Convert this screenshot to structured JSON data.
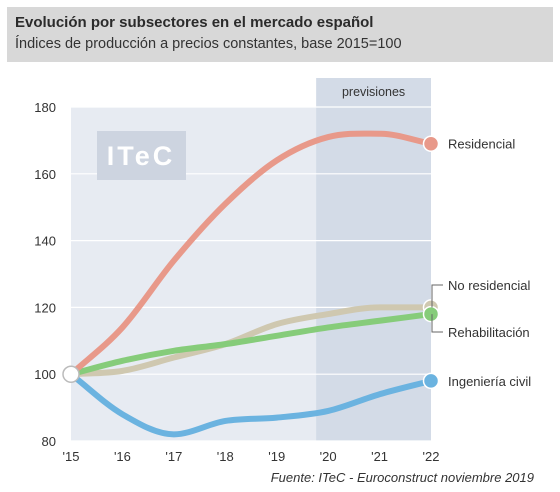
{
  "header": {
    "title": "Evolución por subsectores en el mercado español",
    "subtitle": "Índices de producción a precios constantes, base 2015=100"
  },
  "watermark": "ITeC",
  "source": "Fuente: ITeC - Euroconstruct noviembre 2019",
  "colors": {
    "plot_bg": "#e7ebf2",
    "forecast_bg": "#d3dbe7",
    "grid": "#ffffff",
    "watermark_bg": "#cdd4e0"
  },
  "chart_data": {
    "type": "line",
    "x": [
      "'15",
      "'16",
      "'17",
      "'18",
      "'19",
      "'20",
      "'21",
      "'22"
    ],
    "ylim": [
      80,
      180
    ],
    "yticks": [
      80,
      100,
      120,
      140,
      160,
      180
    ],
    "grid": true,
    "forecast_region": {
      "label": "previsiones",
      "from": "'20",
      "to": "'22"
    },
    "series": [
      {
        "name": "Residencial",
        "color": "#e8998a",
        "values": [
          100,
          114,
          134,
          151,
          164,
          171,
          172,
          169
        ]
      },
      {
        "name": "No residencial",
        "color": "#cfc8b0",
        "values": [
          100,
          101,
          105,
          109,
          115,
          118,
          120,
          120
        ]
      },
      {
        "name": "Rehabilitación",
        "color": "#86cc7a",
        "values": [
          100,
          104,
          107,
          109,
          111.5,
          114,
          116,
          118
        ]
      },
      {
        "name": "Ingeniería civil",
        "color": "#6bb3e0",
        "values": [
          100,
          88,
          82,
          86,
          87,
          89,
          94,
          98
        ]
      }
    ]
  }
}
